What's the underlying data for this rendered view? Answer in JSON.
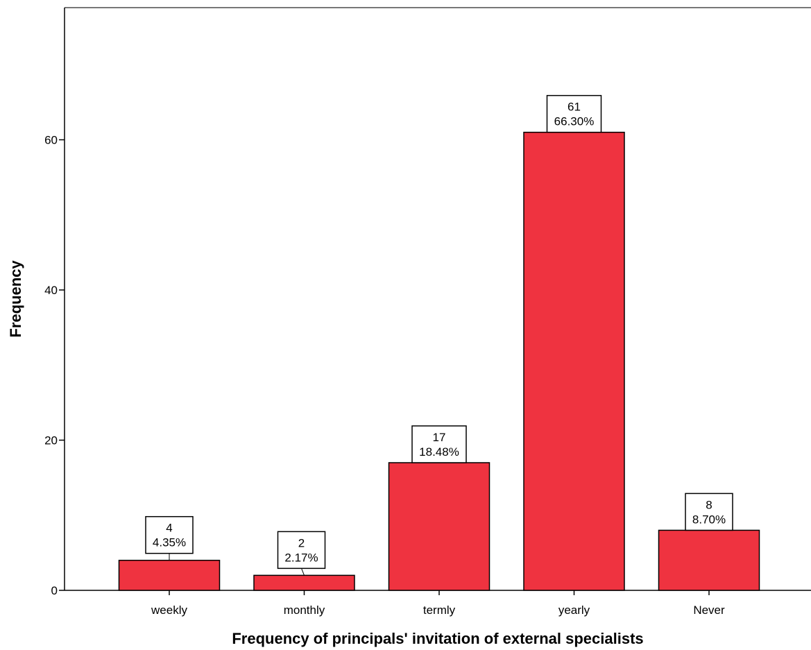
{
  "chart_data": {
    "type": "bar",
    "title": "",
    "xlabel": "Frequency of principals' invitation of external specialists",
    "ylabel": "Frequency",
    "categories": [
      "weekly",
      "monthly",
      "termly",
      "yearly",
      "Never"
    ],
    "values": [
      4,
      2,
      17,
      61,
      8
    ],
    "percent_labels": [
      "4.35%",
      "2.17%",
      "18.48%",
      "66.30%",
      "8.70%"
    ],
    "count_labels": [
      "4",
      "2",
      "17",
      "61",
      "8"
    ],
    "yticks": [
      0,
      20,
      40,
      60
    ],
    "ytick_labels": [
      "0",
      "20",
      "40",
      "60"
    ],
    "ylim": [
      0,
      78
    ],
    "bar_color": "#ef3340",
    "bar_edge_color": "#000000",
    "grid": false,
    "legend": "none"
  }
}
